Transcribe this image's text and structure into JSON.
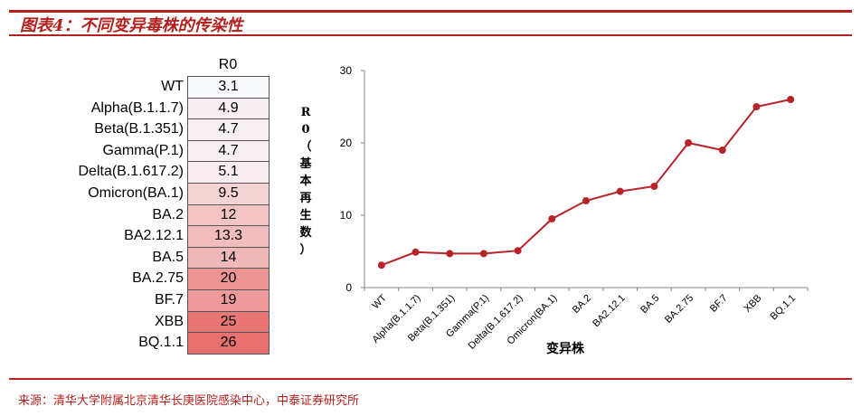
{
  "title": "图表4：不同变异毒株的传染性",
  "source": "来源：清华大学附属北京清华长庚医院感染中心，中泰证券研究所",
  "table": {
    "header": "R0",
    "rows": [
      {
        "label": "WT",
        "value": "3.1"
      },
      {
        "label": "Alpha(B.1.1.7)",
        "value": "4.9"
      },
      {
        "label": "Beta(B.1.351)",
        "value": "4.7"
      },
      {
        "label": "Gamma(P.1)",
        "value": "4.7"
      },
      {
        "label": "Delta(B.1.617.2)",
        "value": "5.1"
      },
      {
        "label": "Omicron(BA.1)",
        "value": "9.5"
      },
      {
        "label": "BA.2",
        "value": "12"
      },
      {
        "label": "BA2.12.1",
        "value": "13.3"
      },
      {
        "label": "BA.5",
        "value": "14"
      },
      {
        "label": "BA.2.75",
        "value": "20"
      },
      {
        "label": "BF.7",
        "value": "19"
      },
      {
        "label": "XBB",
        "value": "25"
      },
      {
        "label": "BQ.1.1",
        "value": "26"
      }
    ],
    "colors": {
      "low": "#f8f9fc",
      "high": "#e8706f"
    }
  },
  "chart_data": {
    "type": "line",
    "categories": [
      "WT",
      "Alpha(B.1.1.7)",
      "Beta(B.1.351)",
      "Gamma(P.1)",
      "Delta(B.1.617.2)",
      "Omicron(BA.1)",
      "BA.2",
      "BA2.12.1",
      "BA.5",
      "BA.2.75",
      "BF.7",
      "XBB",
      "BQ.1.1"
    ],
    "values": [
      3.1,
      4.9,
      4.7,
      4.7,
      5.1,
      9.5,
      12,
      13.3,
      14,
      20,
      19,
      25,
      26
    ],
    "xlabel": "变异株",
    "ylabel": "R0（基本再生数）",
    "ylim": [
      0,
      30
    ],
    "yticks": [
      "0",
      "10",
      "20",
      "30"
    ],
    "grid": false,
    "line_color": "#b8232a"
  }
}
